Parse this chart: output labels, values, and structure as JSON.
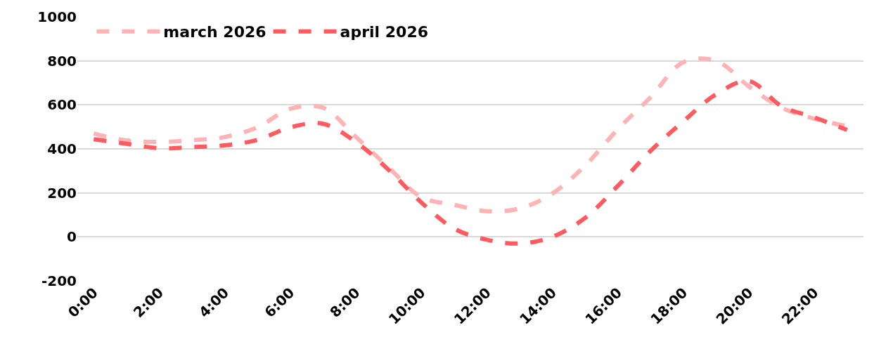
{
  "chart_data": {
    "type": "line",
    "x": [
      0,
      1,
      2,
      3,
      4,
      5,
      6,
      7,
      8,
      9,
      10,
      11,
      12,
      13,
      14,
      15,
      16,
      17,
      18,
      19,
      20,
      21,
      22,
      23
    ],
    "series": [
      {
        "name": "march 2026",
        "color": "#ffb3b5",
        "values": [
          470,
          438,
          432,
          439,
          454,
          498,
          582,
          587,
          455,
          316,
          181,
          146,
          117,
          129,
          197,
          324,
          489,
          635,
          794,
          800,
          684,
          587,
          537,
          503
        ]
      },
      {
        "name": "april 2026",
        "color": "#ff5a60",
        "values": [
          444,
          423,
          403,
          408,
          416,
          441,
          498,
          514,
          432,
          305,
          157,
          38,
          -13,
          -30,
          0,
          86,
          232,
          391,
          525,
          648,
          708,
          594,
          543,
          486
        ]
      }
    ],
    "xlim": [
      -0.5,
      23.5
    ],
    "xticks": [
      {
        "value": 0,
        "label": "0:00"
      },
      {
        "value": 2,
        "label": "2:00"
      },
      {
        "value": 4,
        "label": "4:00"
      },
      {
        "value": 6,
        "label": "6:00"
      },
      {
        "value": 8,
        "label": "8:00"
      },
      {
        "value": 10,
        "label": "10:00"
      },
      {
        "value": 12,
        "label": "12:00"
      },
      {
        "value": 14,
        "label": "14:00"
      },
      {
        "value": 16,
        "label": "16:00"
      },
      {
        "value": 18,
        "label": "18:00"
      },
      {
        "value": 20,
        "label": "20:00"
      },
      {
        "value": 22,
        "label": "22:00"
      }
    ],
    "ylim": [
      -200,
      1000
    ],
    "yticks": [
      -200,
      0,
      200,
      400,
      600,
      800,
      1000
    ],
    "grid": "y",
    "legend": "top left",
    "line_style": "dashed",
    "marker": "none"
  }
}
